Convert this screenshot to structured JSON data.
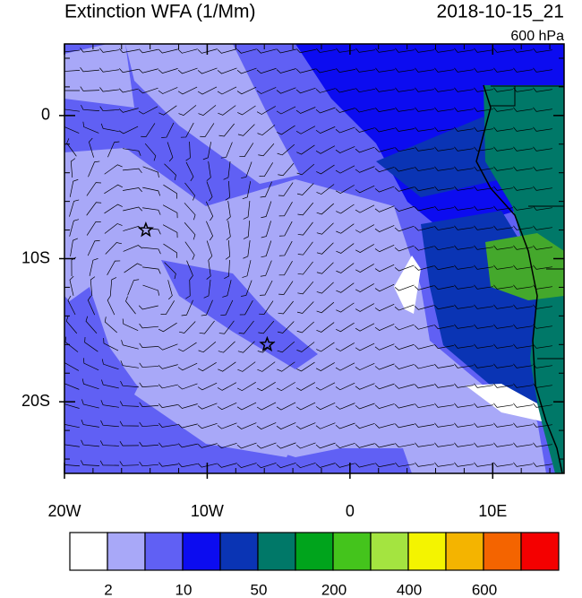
{
  "chart_data": {
    "type": "map",
    "title": "Extinction WFA (1/Mm)",
    "time": "2018-10-15_21",
    "level": "600 hPa",
    "xlim": [
      -20,
      15
    ],
    "ylim": [
      -25,
      5
    ],
    "xticks": [
      {
        "value": -20,
        "label": "20W"
      },
      {
        "value": -10,
        "label": "10W"
      },
      0,
      {
        "value": 10,
        "label": "10E"
      }
    ],
    "yticks": [
      0,
      {
        "value": -10,
        "label": "10S"
      },
      {
        "value": -20,
        "label": "20S"
      }
    ],
    "markers": [
      {
        "lon": -14.3,
        "lat": -8
      },
      {
        "lon": -5.8,
        "lat": -16
      }
    ],
    "colorbar": {
      "colors": [
        "#ffffff",
        "#a8a8f8",
        "#6060f4",
        "#0c0cf0",
        "#0a34b4",
        "#007868",
        "#00a41c",
        "#44c41c",
        "#a4e440",
        "#f4f400",
        "#f4b400",
        "#f46400",
        "#f40000"
      ],
      "labels": [
        2,
        10,
        50,
        200,
        400,
        600
      ]
    }
  }
}
